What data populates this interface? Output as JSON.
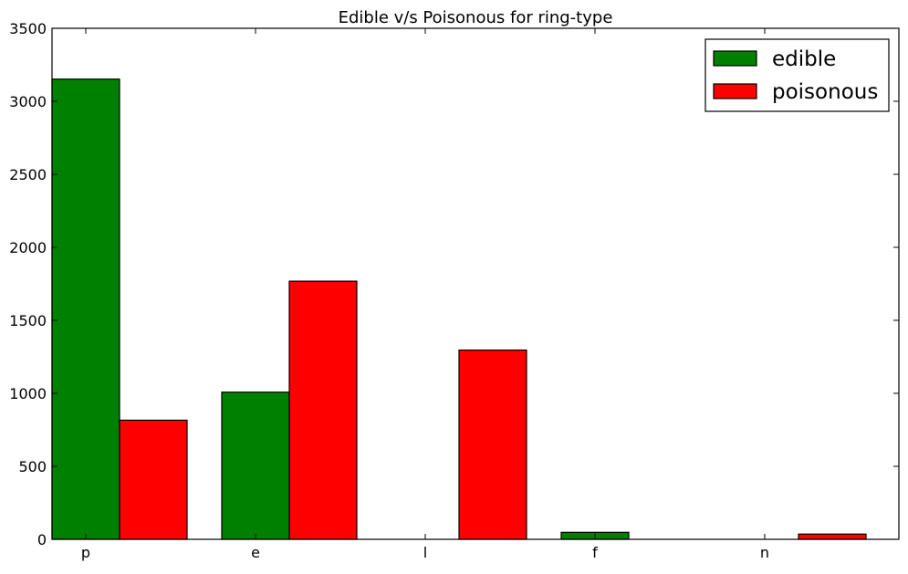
{
  "chart_data": {
    "type": "bar",
    "title": "Edible v/s Poisonous for ring-type",
    "xlabel": "",
    "ylabel": "",
    "categories": [
      "p",
      "e",
      "l",
      "f",
      "n"
    ],
    "series": [
      {
        "name": "edible",
        "color": "#008000",
        "values": [
          3152,
          1008,
          0,
          48,
          0
        ]
      },
      {
        "name": "poisonous",
        "color": "#ff0000",
        "values": [
          816,
          1768,
          1296,
          0,
          36
        ]
      }
    ],
    "ylim": [
      0,
      3500
    ],
    "yticks": [
      0,
      500,
      1000,
      1500,
      2000,
      2500,
      3000,
      3500
    ],
    "grid": false,
    "legend_position": "top-right"
  }
}
